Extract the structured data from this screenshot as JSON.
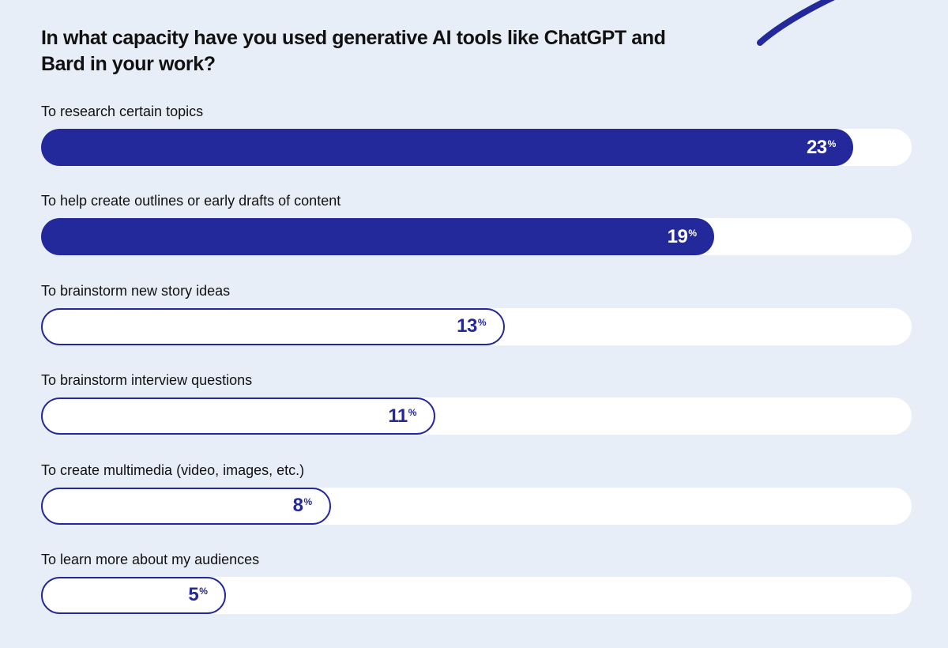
{
  "chart_data": {
    "type": "bar",
    "orientation": "horizontal",
    "title": "In what capacity have you used generative AI tools like ChatGPT and Bard in your work?",
    "categories": [
      "To research certain topics",
      "To help create outlines or early drafts of content",
      "To brainstorm new story ideas",
      "To brainstorm interview questions",
      "To create multimedia (video, images, etc.)",
      "To learn more about my audiences"
    ],
    "values": [
      23,
      19,
      13,
      11,
      8,
      5
    ],
    "value_suffix": "%",
    "xlim": [
      0,
      25
    ],
    "grid": false,
    "legend": "none"
  },
  "colors": {
    "accent": "#23299b",
    "background": "#e8eef8",
    "track": "#ffffff"
  },
  "decoration": "arc-stroke-top-right"
}
